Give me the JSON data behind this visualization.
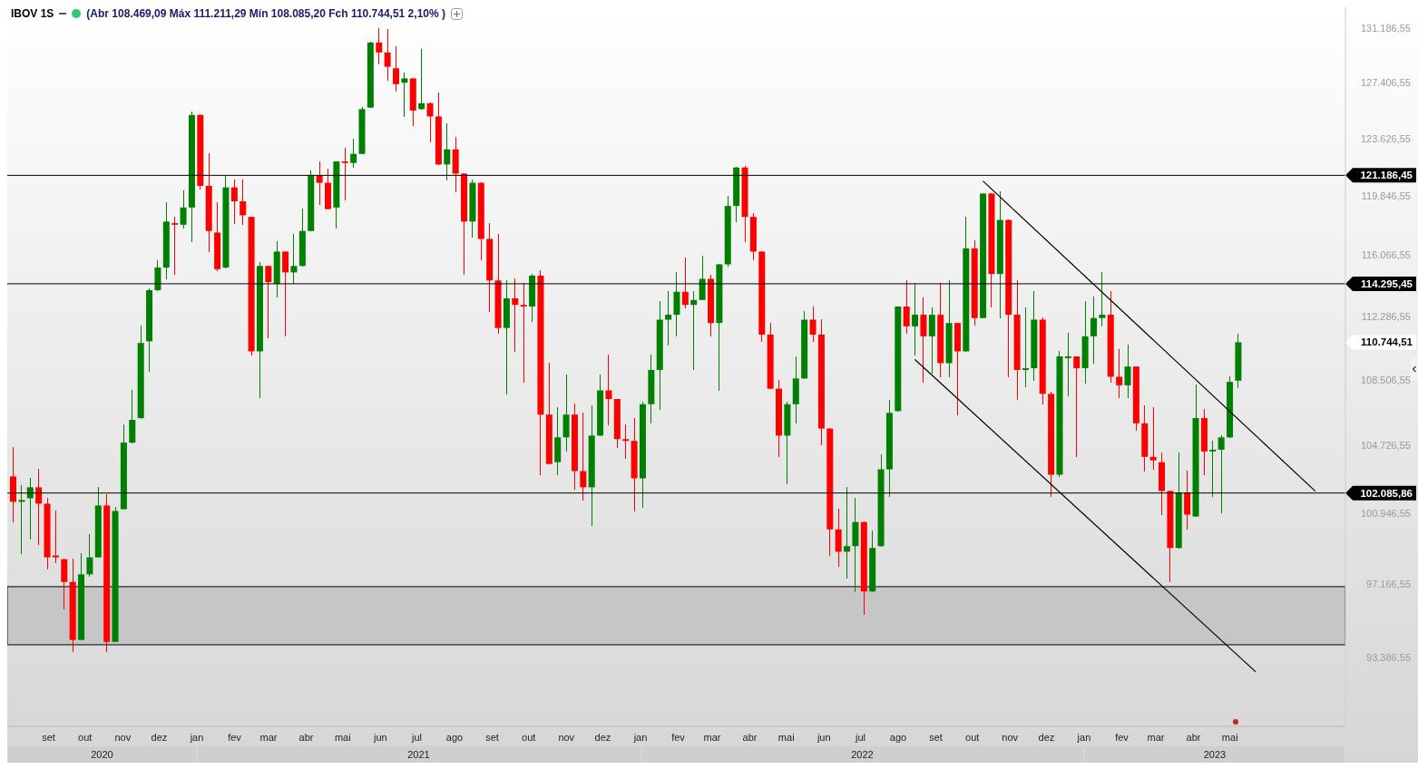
{
  "chart_data": {
    "type": "candlestick",
    "title": "IBOV 1S",
    "subtitle": "(Abr 108.469,09 Máx 111.211,29 Mín 108.085,20 Fch 110.744,51 2,10% )",
    "log": true,
    "x": [
      "2020-08-03",
      "2020-08-10",
      "2020-08-17",
      "2020-08-24",
      "2020-08-31",
      "2020-09-07",
      "2020-09-14",
      "2020-09-21",
      "2020-09-28",
      "2020-10-05",
      "2020-10-12",
      "2020-10-19",
      "2020-10-26",
      "2020-11-02",
      "2020-11-09",
      "2020-11-16",
      "2020-11-23",
      "2020-11-30",
      "2020-12-07",
      "2020-12-14",
      "2020-12-21",
      "2020-12-28",
      "2021-01-04",
      "2021-01-11",
      "2021-01-18",
      "2021-01-25",
      "2021-02-01",
      "2021-02-08",
      "2021-02-15",
      "2021-02-22",
      "2021-03-01",
      "2021-03-08",
      "2021-03-15",
      "2021-03-22",
      "2021-03-29",
      "2021-04-05",
      "2021-04-12",
      "2021-04-19",
      "2021-04-26",
      "2021-05-03",
      "2021-05-10",
      "2021-05-17",
      "2021-05-24",
      "2021-05-31",
      "2021-06-07",
      "2021-06-14",
      "2021-06-21",
      "2021-06-28",
      "2021-07-05",
      "2021-07-12",
      "2021-07-19",
      "2021-07-26",
      "2021-08-02",
      "2021-08-09",
      "2021-08-16",
      "2021-08-23",
      "2021-08-30",
      "2021-09-06",
      "2021-09-13",
      "2021-09-20",
      "2021-09-27",
      "2021-10-04",
      "2021-10-11",
      "2021-10-18",
      "2021-10-25",
      "2021-11-01",
      "2021-11-08",
      "2021-11-15",
      "2021-11-22",
      "2021-11-29",
      "2021-12-06",
      "2021-12-13",
      "2021-12-20",
      "2021-12-27",
      "2022-01-03",
      "2022-01-10",
      "2022-01-17",
      "2022-01-24",
      "2022-01-31",
      "2022-02-07",
      "2022-02-14",
      "2022-02-21",
      "2022-02-28",
      "2022-03-07",
      "2022-03-14",
      "2022-03-21",
      "2022-03-28",
      "2022-04-04",
      "2022-04-11",
      "2022-04-18",
      "2022-04-25",
      "2022-05-02",
      "2022-05-09",
      "2022-05-16",
      "2022-05-23",
      "2022-05-30",
      "2022-06-06",
      "2022-06-13",
      "2022-06-20",
      "2022-06-27",
      "2022-07-04",
      "2022-07-11",
      "2022-07-18",
      "2022-07-25",
      "2022-08-01",
      "2022-08-08",
      "2022-08-15",
      "2022-08-22",
      "2022-08-29",
      "2022-09-05",
      "2022-09-12",
      "2022-09-19",
      "2022-09-26",
      "2022-10-03",
      "2022-10-10",
      "2022-10-17",
      "2022-10-24",
      "2022-10-31",
      "2022-11-07",
      "2022-11-14",
      "2022-11-21",
      "2022-11-28",
      "2022-12-05",
      "2022-12-12",
      "2022-12-19",
      "2022-12-26",
      "2023-01-02",
      "2023-01-09",
      "2023-01-16",
      "2023-01-23",
      "2023-01-30",
      "2023-02-06",
      "2023-02-13",
      "2023-02-20",
      "2023-02-27",
      "2023-03-06",
      "2023-03-13",
      "2023-03-20",
      "2023-03-27",
      "2023-04-03",
      "2023-04-10",
      "2023-04-17",
      "2023-04-24",
      "2023-05-01",
      "2023-05-08"
    ],
    "ohlc": [
      [
        103000,
        104600,
        100500,
        101600
      ],
      [
        101600,
        102500,
        98800,
        101700
      ],
      [
        101800,
        102900,
        99600,
        102400
      ],
      [
        102400,
        103400,
        99300,
        101500
      ],
      [
        101500,
        101800,
        98000,
        98600
      ],
      [
        98700,
        101100,
        98300,
        98600
      ],
      [
        98500,
        98500,
        95900,
        97300
      ],
      [
        97300,
        98500,
        93700,
        94300
      ],
      [
        94300,
        98800,
        94300,
        97700
      ],
      [
        97700,
        99800,
        97600,
        98600
      ],
      [
        98600,
        102400,
        98600,
        101400
      ],
      [
        101400,
        102000,
        93700,
        94200
      ],
      [
        94200,
        101300,
        94200,
        101100
      ],
      [
        101200,
        105900,
        101200,
        104900
      ],
      [
        104900,
        107900,
        104900,
        106200
      ],
      [
        106300,
        111700,
        106300,
        110700
      ],
      [
        110800,
        114000,
        109000,
        113900
      ],
      [
        113900,
        115700,
        113900,
        115300
      ],
      [
        115300,
        119400,
        114600,
        118200
      ],
      [
        118100,
        118500,
        114900,
        118000
      ],
      [
        118000,
        120200,
        117800,
        119100
      ],
      [
        119100,
        125400,
        116900,
        125200
      ],
      [
        125200,
        125200,
        120300,
        120500
      ],
      [
        120500,
        122600,
        116300,
        117600
      ],
      [
        117500,
        119400,
        115100,
        115200
      ],
      [
        115300,
        121200,
        115300,
        120400
      ],
      [
        120400,
        120900,
        118100,
        119500
      ],
      [
        119500,
        120900,
        118000,
        118600
      ],
      [
        118500,
        118500,
        110000,
        110200
      ],
      [
        110200,
        115600,
        107500,
        115400
      ],
      [
        115400,
        115400,
        111000,
        114400
      ],
      [
        114300,
        116900,
        113500,
        116300
      ],
      [
        116300,
        116300,
        111100,
        115000
      ],
      [
        115000,
        117400,
        114300,
        115400
      ],
      [
        115400,
        119000,
        115400,
        117600
      ],
      [
        117600,
        121500,
        117600,
        121200
      ],
      [
        121200,
        122100,
        119300,
        120700
      ],
      [
        120700,
        121600,
        119000,
        119000
      ],
      [
        119100,
        122100,
        117800,
        122100
      ],
      [
        122100,
        123000,
        119600,
        122000
      ],
      [
        122000,
        123600,
        121700,
        122600
      ],
      [
        122600,
        125700,
        122600,
        125600
      ],
      [
        125700,
        130200,
        125700,
        130200
      ],
      [
        130200,
        131200,
        128700,
        129500
      ],
      [
        129500,
        131100,
        127600,
        128500
      ],
      [
        128400,
        129900,
        126800,
        127300
      ],
      [
        127400,
        128100,
        125100,
        127700
      ],
      [
        127700,
        127700,
        124500,
        125500
      ],
      [
        125600,
        129700,
        125600,
        126000
      ],
      [
        126000,
        126000,
        123400,
        125100
      ],
      [
        125100,
        126700,
        121900,
        121900
      ],
      [
        121900,
        124600,
        120900,
        122900
      ],
      [
        122900,
        123700,
        120100,
        121300
      ],
      [
        121300,
        121300,
        114900,
        118200
      ],
      [
        118200,
        120900,
        117200,
        120700
      ],
      [
        120700,
        120700,
        115800,
        117100
      ],
      [
        117100,
        118100,
        112600,
        114500
      ],
      [
        114500,
        117400,
        111300,
        111600
      ],
      [
        111600,
        114500,
        107700,
        113400
      ],
      [
        113400,
        114600,
        110200,
        113000
      ],
      [
        113000,
        114300,
        108400,
        112900
      ],
      [
        112900,
        114900,
        112000,
        114800
      ],
      [
        114800,
        115100,
        103100,
        106500
      ],
      [
        106500,
        109500,
        103700,
        103700
      ],
      [
        103800,
        106900,
        103100,
        105200
      ],
      [
        105200,
        108800,
        104400,
        106500
      ],
      [
        106500,
        107100,
        102300,
        103300
      ],
      [
        103300,
        106600,
        101700,
        102400
      ],
      [
        102400,
        107000,
        100300,
        105300
      ],
      [
        105300,
        108800,
        105300,
        107900
      ],
      [
        107900,
        110000,
        105900,
        107400
      ],
      [
        107400,
        107400,
        104600,
        105100
      ],
      [
        105100,
        105900,
        104000,
        105000
      ],
      [
        105000,
        106300,
        101100,
        102900
      ],
      [
        102900,
        107200,
        101300,
        107100
      ],
      [
        107100,
        110000,
        106000,
        109100
      ],
      [
        109100,
        113200,
        106800,
        112100
      ],
      [
        112100,
        113800,
        110600,
        112400
      ],
      [
        112400,
        115000,
        111100,
        113800
      ],
      [
        113800,
        115900,
        112800,
        113000
      ],
      [
        113000,
        113800,
        109100,
        113300
      ],
      [
        113300,
        116000,
        113300,
        114600
      ],
      [
        114600,
        114800,
        111100,
        111900
      ],
      [
        111900,
        115500,
        107900,
        115500
      ],
      [
        115500,
        119800,
        115400,
        119200
      ],
      [
        119200,
        121700,
        118200,
        121700
      ],
      [
        121700,
        121800,
        116900,
        118500
      ],
      [
        118500,
        118700,
        115800,
        116300
      ],
      [
        116300,
        116300,
        110800,
        111200
      ],
      [
        111200,
        111900,
        108000,
        108000
      ],
      [
        108000,
        108500,
        104100,
        105300
      ],
      [
        105300,
        107200,
        102600,
        107100
      ],
      [
        107100,
        109900,
        106000,
        108600
      ],
      [
        108600,
        112600,
        108600,
        112100
      ],
      [
        112100,
        112900,
        110800,
        111200
      ],
      [
        111200,
        112100,
        104800,
        105700
      ],
      [
        105700,
        105700,
        98700,
        100100
      ],
      [
        100100,
        101200,
        98100,
        98900
      ],
      [
        98900,
        102400,
        97500,
        99200
      ],
      [
        99200,
        101800,
        96800,
        100500
      ],
      [
        100500,
        100500,
        95600,
        96800
      ],
      [
        96800,
        100000,
        96800,
        99100
      ],
      [
        99200,
        104200,
        99200,
        103400
      ],
      [
        103400,
        107300,
        101900,
        106600
      ],
      [
        106700,
        112900,
        106700,
        112900
      ],
      [
        112900,
        114500,
        111300,
        111700
      ],
      [
        111700,
        114300,
        110000,
        112400
      ],
      [
        112400,
        113400,
        108400,
        111100
      ],
      [
        111100,
        112800,
        108900,
        112400
      ],
      [
        112400,
        114300,
        108700,
        109500
      ],
      [
        109500,
        114500,
        108700,
        111900
      ],
      [
        111900,
        111900,
        106500,
        110200
      ],
      [
        110200,
        118500,
        110200,
        116500
      ],
      [
        116500,
        117000,
        111800,
        112200
      ],
      [
        112200,
        120000,
        112200,
        120000
      ],
      [
        120000,
        120000,
        112900,
        114900
      ],
      [
        114900,
        120100,
        112200,
        118300
      ],
      [
        118300,
        118300,
        108700,
        112400
      ],
      [
        112400,
        114500,
        107400,
        109100
      ],
      [
        109100,
        112800,
        108100,
        109200
      ],
      [
        109200,
        113800,
        108500,
        112100
      ],
      [
        112100,
        112200,
        107100,
        107700
      ],
      [
        107700,
        107800,
        101900,
        103100
      ],
      [
        103100,
        110200,
        103000,
        109900
      ],
      [
        109800,
        111300,
        107600,
        109900
      ],
      [
        109900,
        109900,
        104100,
        109200
      ],
      [
        109200,
        113200,
        108300,
        111100
      ],
      [
        111100,
        113500,
        109500,
        112200
      ],
      [
        112200,
        115000,
        111700,
        112400
      ],
      [
        112400,
        113800,
        108400,
        108700
      ],
      [
        108700,
        110300,
        107500,
        108200
      ],
      [
        108200,
        110600,
        107500,
        109300
      ],
      [
        109300,
        109300,
        105600,
        106000
      ],
      [
        106000,
        107000,
        103300,
        104100
      ],
      [
        104100,
        106900,
        103400,
        103900
      ],
      [
        103800,
        104300,
        100900,
        102200
      ],
      [
        102200,
        102200,
        97300,
        99100
      ],
      [
        99100,
        104300,
        99100,
        102100
      ],
      [
        102100,
        103300,
        100100,
        100900
      ],
      [
        100800,
        108200,
        100800,
        106300
      ],
      [
        106300,
        106800,
        103100,
        104400
      ],
      [
        104400,
        105000,
        101900,
        104500
      ],
      [
        104500,
        105300,
        101000,
        105200
      ],
      [
        105200,
        108700,
        105200,
        108400
      ],
      [
        108469.09,
        111211.29,
        108085.2,
        110744.51
      ]
    ],
    "colors": [
      "#ff0000",
      "#008000",
      "#008000",
      "#ff0000",
      "#ff0000",
      "#ff0000",
      "#ff0000",
      "#ff0000",
      "#008000",
      "#008000",
      "#008000",
      "#ff0000",
      "#008000",
      "#008000",
      "#008000",
      "#008000",
      "#008000",
      "#008000",
      "#008000",
      "#ff0000",
      "#008000",
      "#008000",
      "#ff0000",
      "#ff0000",
      "#ff0000",
      "#008000",
      "#ff0000",
      "#ff0000",
      "#ff0000",
      "#008000",
      "#ff0000",
      "#008000",
      "#ff0000",
      "#008000",
      "#008000",
      "#008000",
      "#ff0000",
      "#ff0000",
      "#008000",
      "#ff0000",
      "#008000",
      "#008000",
      "#008000",
      "#ff0000",
      "#ff0000",
      "#ff0000",
      "#008000",
      "#ff0000",
      "#008000",
      "#ff0000",
      "#ff0000",
      "#008000",
      "#ff0000",
      "#ff0000",
      "#008000",
      "#ff0000",
      "#ff0000",
      "#ff0000",
      "#008000",
      "#ff0000",
      "#ff0000",
      "#008000",
      "#ff0000",
      "#ff0000",
      "#008000",
      "#008000",
      "#ff0000",
      "#ff0000",
      "#008000",
      "#008000",
      "#ff0000",
      "#ff0000",
      "#ff0000",
      "#ff0000",
      "#008000",
      "#008000",
      "#008000",
      "#008000",
      "#008000",
      "#ff0000",
      "#008000",
      "#008000",
      "#ff0000",
      "#008000",
      "#008000",
      "#008000",
      "#ff0000",
      "#ff0000",
      "#ff0000",
      "#ff0000",
      "#ff0000",
      "#008000",
      "#008000",
      "#008000",
      "#ff0000",
      "#ff0000",
      "#ff0000",
      "#ff0000",
      "#008000",
      "#008000",
      "#ff0000",
      "#008000",
      "#008000",
      "#008000",
      "#008000",
      "#ff0000",
      "#008000",
      "#ff0000",
      "#008000",
      "#ff0000",
      "#008000",
      "#ff0000",
      "#008000",
      "#ff0000",
      "#008000",
      "#ff0000",
      "#008000",
      "#ff0000",
      "#ff0000",
      "#008000",
      "#008000",
      "#ff0000",
      "#ff0000",
      "#008000",
      "#008000",
      "#ff0000",
      "#008000",
      "#008000",
      "#008000",
      "#ff0000",
      "#ff0000",
      "#008000",
      "#ff0000",
      "#ff0000",
      "#ff0000",
      "#ff0000",
      "#ff0000",
      "#008000",
      "#ff0000",
      "#008000",
      "#ff0000",
      "#008000",
      "#008000",
      "#008000",
      "#008000"
    ],
    "series": [
      {
        "type": "line",
        "color": "#000000",
        "x": [
          "2022-10-10",
          "2023-07-10"
        ],
        "values": [
          120800,
          102200
        ]
      },
      {
        "type": "line",
        "color": "#000000",
        "x": [
          "2022-08-15",
          "2023-05-22"
        ],
        "values": [
          109700,
          92700
        ]
      }
    ],
    "xlim": [
      "2020-07-29",
      "2023-08-04"
    ],
    "xticks": [
      {
        "value": "2020-09-01",
        "label": "set"
      },
      {
        "value": "2020-10-01",
        "label": "out"
      },
      {
        "value": "2020-11-01",
        "label": "nov"
      },
      {
        "value": "2020-12-01",
        "label": "dez"
      },
      {
        "value": "2021-01-01",
        "label": "jan"
      },
      {
        "value": "2021-02-01",
        "label": "fev"
      },
      {
        "value": "2021-03-01",
        "label": "mar"
      },
      {
        "value": "2021-04-01",
        "label": "abr"
      },
      {
        "value": "2021-05-01",
        "label": "mai"
      },
      {
        "value": "2021-06-01",
        "label": "jun"
      },
      {
        "value": "2021-07-01",
        "label": "jul"
      },
      {
        "value": "2021-08-01",
        "label": "ago"
      },
      {
        "value": "2021-09-01",
        "label": "set"
      },
      {
        "value": "2021-10-01",
        "label": "out"
      },
      {
        "value": "2021-11-01",
        "label": "nov"
      },
      {
        "value": "2021-12-01",
        "label": "dez"
      },
      {
        "value": "2022-01-01",
        "label": "jan"
      },
      {
        "value": "2022-02-01",
        "label": "fev"
      },
      {
        "value": "2022-03-01",
        "label": "mar"
      },
      {
        "value": "2022-04-01",
        "label": "abr"
      },
      {
        "value": "2022-05-01",
        "label": "mai"
      },
      {
        "value": "2022-06-01",
        "label": "jun"
      },
      {
        "value": "2022-07-01",
        "label": "jul"
      },
      {
        "value": "2022-08-01",
        "label": "ago"
      },
      {
        "value": "2022-09-01",
        "label": "set"
      },
      {
        "value": "2022-10-01",
        "label": "out"
      },
      {
        "value": "2022-11-01",
        "label": "nov"
      },
      {
        "value": "2022-12-01",
        "label": "dez"
      },
      {
        "value": "2023-01-01",
        "label": "jan"
      },
      {
        "value": "2023-02-01",
        "label": "fev"
      },
      {
        "value": "2023-03-01",
        "label": "mar"
      },
      {
        "value": "2023-04-01",
        "label": "abr"
      },
      {
        "value": "2023-05-01",
        "label": "mai"
      }
    ],
    "ylim": [
      90000,
      132700
    ],
    "yticks": [
      {
        "value": 93386.55,
        "label": "93.386,55"
      },
      {
        "value": 97166.55,
        "label": "97.166,55"
      },
      {
        "value": 100946.55,
        "label": "100.946,55"
      },
      {
        "value": 104726.55,
        "label": "104.726,55"
      },
      {
        "value": 108506.55,
        "label": "108.506,55"
      },
      {
        "value": 112286.55,
        "label": "112.286,55"
      },
      {
        "value": 116066.55,
        "label": "116.066,55"
      },
      {
        "value": 119846.55,
        "label": "119.846,55"
      },
      {
        "value": 123626.55,
        "label": "123.626,55"
      },
      {
        "value": 127406.55,
        "label": "127.406,55"
      },
      {
        "value": 131186.55,
        "label": "131.186,55"
      }
    ],
    "ref_lines": [
      {
        "axis": "y",
        "value": 121186.45,
        "label": "121.186,45",
        "color": "#000000"
      },
      {
        "axis": "y",
        "value": 114295.45,
        "label": "114.295,45",
        "color": "#000000"
      },
      {
        "axis": "y",
        "value": 102085.86,
        "label": "102.085,86",
        "color": "#000000"
      }
    ],
    "bands": [
      {
        "axis": "y",
        "from": 94055,
        "to": 97053,
        "color": "#c6c6c6"
      }
    ],
    "annotations": [
      "2020",
      "2021",
      "2022",
      "2023",
      "110.744,51"
    ]
  }
}
